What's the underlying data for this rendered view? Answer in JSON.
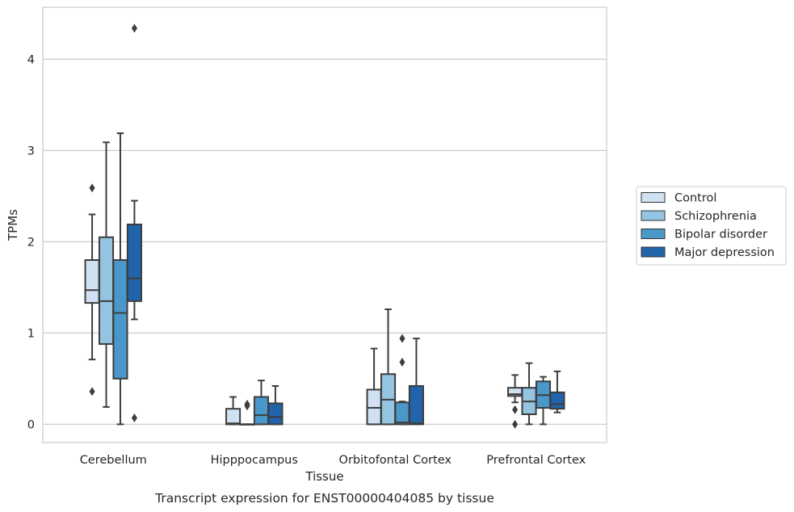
{
  "chart_data": {
    "type": "box",
    "title": "",
    "caption": "Transcript expression for ENST00000404085 by tissue",
    "xlabel": "Tissue",
    "ylabel": "TPMs",
    "ylim": [
      -0.2,
      4.57
    ],
    "yticks": [
      0,
      1,
      2,
      3,
      4
    ],
    "grid": "horizontal",
    "legend_position": "right",
    "categories": [
      "Cerebellum",
      "Hipppocampus",
      "Orbitofontal Cortex",
      "Prefrontal Cortex"
    ],
    "series": [
      {
        "name": "Control",
        "color": "#d0e1f2",
        "boxes": [
          {
            "min": 0.71,
            "q1": 1.33,
            "median": 1.47,
            "q3": 1.8,
            "max": 2.3,
            "outliers": [
              2.59,
              0.36
            ]
          },
          {
            "min": 0.0,
            "q1": 0.0,
            "median": 0.01,
            "q3": 0.17,
            "max": 0.3,
            "outliers": []
          },
          {
            "min": 0.0,
            "q1": 0.0,
            "median": 0.18,
            "q3": 0.38,
            "max": 0.83,
            "outliers": []
          },
          {
            "min": 0.24,
            "q1": 0.31,
            "median": 0.33,
            "q3": 0.4,
            "max": 0.54,
            "outliers": [
              0.16,
              0.0
            ]
          }
        ]
      },
      {
        "name": "Schizophrenia",
        "color": "#94c4df",
        "boxes": [
          {
            "min": 0.19,
            "q1": 0.88,
            "median": 1.35,
            "q3": 2.05,
            "max": 3.09,
            "outliers": []
          },
          {
            "min": 0.0,
            "q1": 0.0,
            "median": 0.0,
            "q3": 0.0,
            "max": 0.0,
            "outliers": [
              0.2,
              0.22
            ]
          },
          {
            "min": 0.0,
            "q1": 0.0,
            "median": 0.27,
            "q3": 0.55,
            "max": 1.26,
            "outliers": []
          },
          {
            "min": 0.0,
            "q1": 0.11,
            "median": 0.25,
            "q3": 0.4,
            "max": 0.67,
            "outliers": []
          }
        ]
      },
      {
        "name": "Bipolar disorder",
        "color": "#4a98c9",
        "boxes": [
          {
            "min": 0.0,
            "q1": 0.5,
            "median": 1.22,
            "q3": 1.8,
            "max": 3.19,
            "outliers": []
          },
          {
            "min": 0.0,
            "q1": 0.0,
            "median": 0.1,
            "q3": 0.3,
            "max": 0.48,
            "outliers": []
          },
          {
            "min": 0.0,
            "q1": 0.0,
            "median": 0.02,
            "q3": 0.24,
            "max": 0.25,
            "outliers": [
              0.94,
              0.68
            ]
          },
          {
            "min": 0.0,
            "q1": 0.18,
            "median": 0.32,
            "q3": 0.47,
            "max": 0.52,
            "outliers": []
          }
        ]
      },
      {
        "name": "Major depression",
        "color": "#2164ab",
        "boxes": [
          {
            "min": 1.15,
            "q1": 1.35,
            "median": 1.6,
            "q3": 2.19,
            "max": 2.45,
            "outliers": [
              4.34,
              0.07
            ]
          },
          {
            "min": 0.0,
            "q1": 0.0,
            "median": 0.08,
            "q3": 0.23,
            "max": 0.42,
            "outliers": []
          },
          {
            "min": 0.0,
            "q1": 0.0,
            "median": 0.01,
            "q3": 0.42,
            "max": 0.94,
            "outliers": []
          },
          {
            "min": 0.13,
            "q1": 0.17,
            "median": 0.22,
            "q3": 0.35,
            "max": 0.58,
            "outliers": []
          }
        ]
      }
    ]
  }
}
